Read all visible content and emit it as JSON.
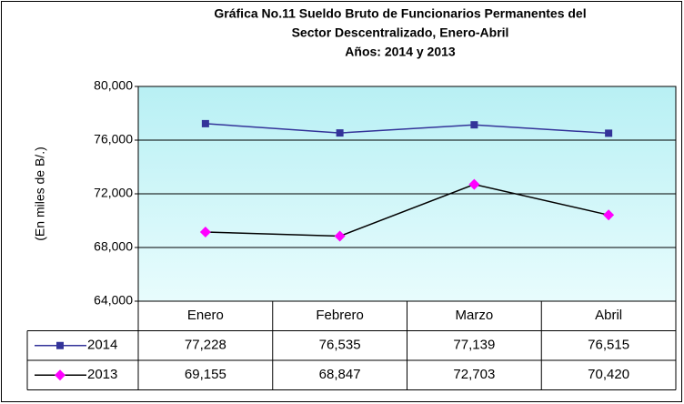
{
  "chart_data": {
    "type": "line",
    "title_lines": [
      "Gráfica No.11 Sueldo Bruto de Funcionarios Permanentes del",
      "Sector Descentralizado, Enero-Abril",
      "Años: 2014 y 2013"
    ],
    "y_label": "(En miles de B/.)",
    "categories": [
      "Enero",
      "Febrero",
      "Marzo",
      "Abril"
    ],
    "series": [
      {
        "name": "2014",
        "color": "#333399",
        "marker": "square",
        "marker_color": "#333399",
        "values": [
          77228,
          76535,
          77139,
          76515
        ],
        "value_labels": [
          "77,228",
          "76,535",
          "77,139",
          "76,515"
        ]
      },
      {
        "name": "2013",
        "color": "#000000",
        "marker": "diamond",
        "marker_color": "#ff00ff",
        "values": [
          69155,
          68847,
          72703,
          70420
        ],
        "value_labels": [
          "69,155",
          "68,847",
          "72,703",
          "70,420"
        ]
      }
    ],
    "ylim": [
      64000,
      80000
    ],
    "yticks": [
      {
        "value": 64000,
        "label": "64,000"
      },
      {
        "value": 68000,
        "label": "68,000"
      },
      {
        "value": 72000,
        "label": "72,000"
      },
      {
        "value": 76000,
        "label": "76,000"
      },
      {
        "value": 80000,
        "label": "80,000"
      }
    ],
    "grid": true,
    "data_table": true
  }
}
